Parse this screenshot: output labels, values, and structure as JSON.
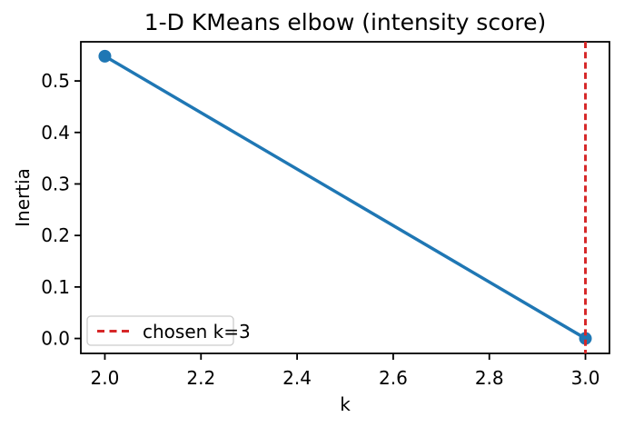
{
  "chart_data": {
    "type": "line",
    "title": "1-D KMeans elbow (intensity score)",
    "xlabel": "k",
    "ylabel": "Inertia",
    "x": [
      2.0,
      3.0
    ],
    "series": [
      {
        "name": "inertia",
        "values": [
          0.548,
          0.0
        ],
        "marker": "circle"
      }
    ],
    "xlim": [
      1.95,
      3.05
    ],
    "ylim": [
      -0.029,
      0.576
    ],
    "x_ticks": [
      2.0,
      2.2,
      2.4,
      2.6,
      2.8,
      3.0
    ],
    "y_ticks": [
      0.0,
      0.1,
      0.2,
      0.3,
      0.4,
      0.5
    ],
    "tick_decimals": 1,
    "grid": false,
    "vline": {
      "x": 3.0,
      "style": "dashed",
      "label": "chosen k=3"
    },
    "legend": {
      "position": "lower-left",
      "entries": [
        {
          "label": "chosen k=3",
          "style": "dashed"
        }
      ]
    }
  },
  "colors": {
    "series": "#1f77b4",
    "vline": "#d62728",
    "spine": "#000000",
    "text": "#000000",
    "legend_border": "#cccccc",
    "background": "#ffffff"
  }
}
